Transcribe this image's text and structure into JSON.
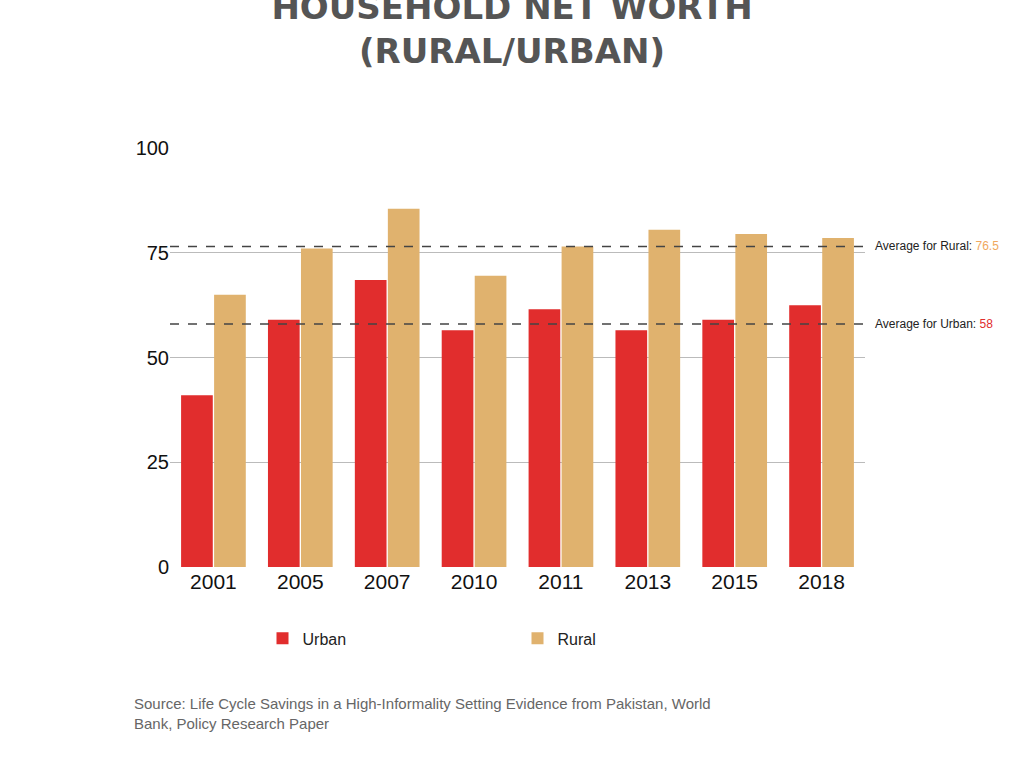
{
  "chart_data": {
    "type": "bar",
    "title": "HOUSEHOLD NET WORTH\n(RURAL/URBAN)",
    "categories": [
      "2001",
      "2005",
      "2007",
      "2010",
      "2011",
      "2013",
      "2015",
      "2018"
    ],
    "series": [
      {
        "name": "Urban",
        "color": "#e12d2d",
        "values": [
          41,
          59,
          68.5,
          56.5,
          61.5,
          56.5,
          59,
          62.5
        ]
      },
      {
        "name": "Rural",
        "color": "#e0b26e",
        "values": [
          65,
          76,
          85.5,
          69.5,
          76.5,
          80.5,
          79.5,
          78.5
        ]
      }
    ],
    "reference_lines": [
      {
        "label": "Average for Rural:",
        "value": 76.5,
        "color": "#f0a860"
      },
      {
        "label": "Average for Urban:",
        "value": 58,
        "color": "#e12d2d"
      }
    ],
    "source": "Source: Life Cycle Savings in a High-Informality Setting Evidence from Pakistan, World\nBank, Policy Research Paper",
    "ylim": [
      0,
      100
    ],
    "yticks": [
      0,
      25,
      50,
      75,
      100
    ],
    "grid": true,
    "legend": "bottom"
  }
}
